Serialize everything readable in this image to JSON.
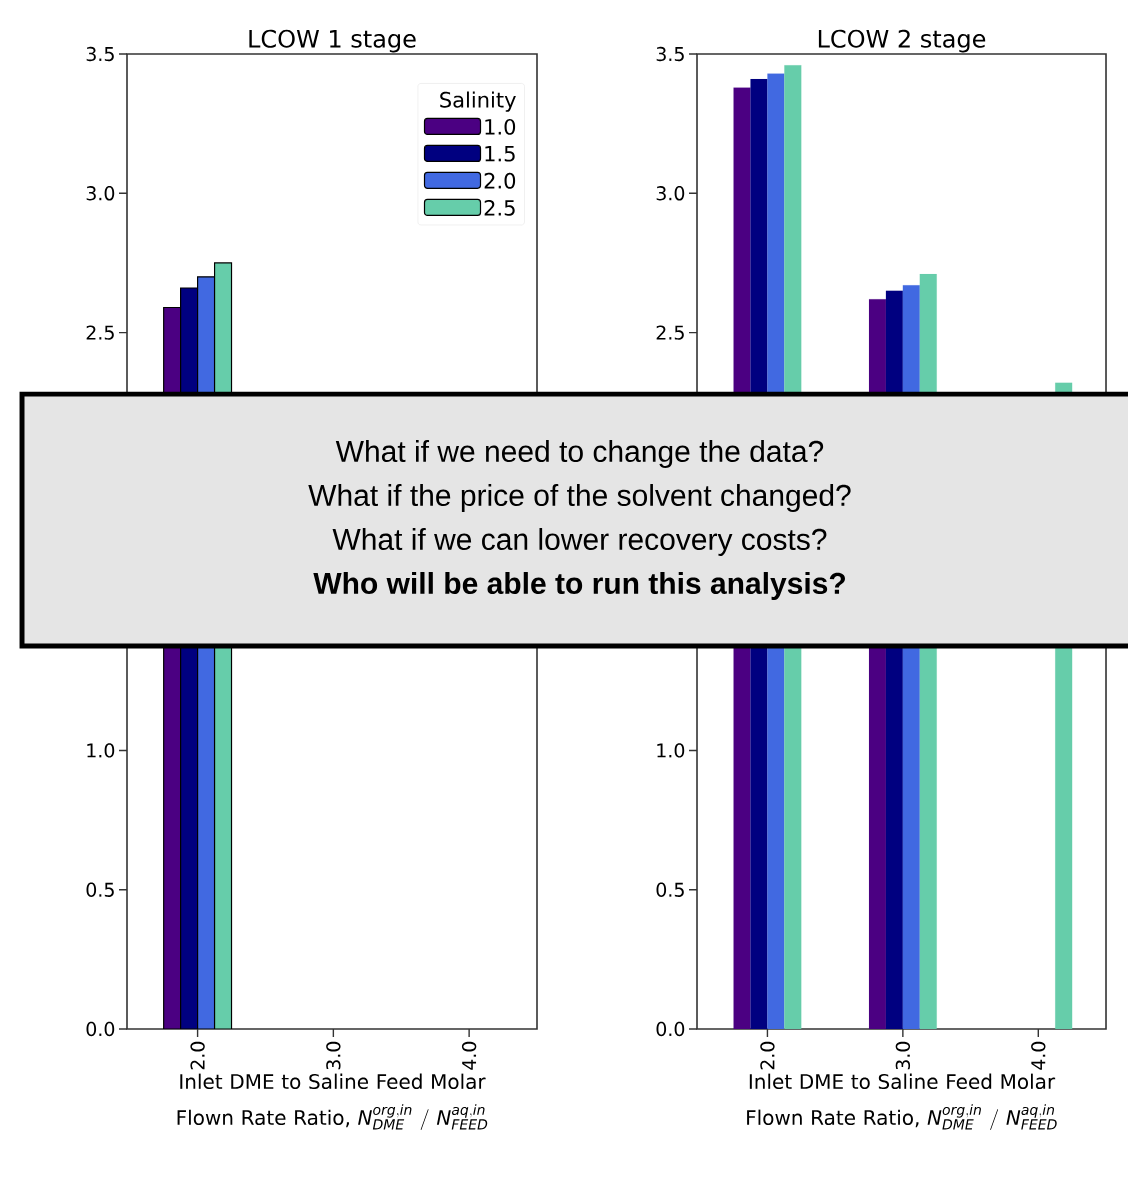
{
  "chart_data": [
    {
      "type": "bar",
      "title": "LCOW 1 stage",
      "xlabel": "Inlet DME to Saline Feed Molar Flown Rate Ratio,",
      "annotations": [
        "N^{org, in}_{DME} \\ / \\ N^{aq, in}_{FEED}"
      ],
      "legend_title": "Salinity",
      "legend": "top right",
      "categories": [
        "2.0",
        "3.0",
        "4.0"
      ],
      "ylim": [
        0,
        3.5
      ],
      "yticks": [
        {
          "value": 0,
          "label": "0.0"
        },
        0.5,
        {
          "value": 1,
          "label": "1.0"
        },
        2.5,
        {
          "value": 3,
          "label": "3.0"
        },
        3.5
      ],
      "series": [
        {
          "name": "1.0",
          "color": "#4b0082",
          "values": [
            2.59,
            null,
            null
          ]
        },
        {
          "name": "1.5",
          "color": "#000080",
          "values": [
            2.66,
            null,
            null
          ]
        },
        {
          "name": "2.0",
          "color": "#4169e1",
          "values": [
            2.7,
            null,
            null
          ]
        },
        {
          "name": "2.5",
          "color": "#66cdaa",
          "values": [
            2.75,
            null,
            null
          ]
        }
      ]
    },
    {
      "type": "bar",
      "title": "LCOW 2 stage",
      "xlabel": "Inlet DME to Saline Feed Molar Flown Rate Ratio,",
      "annotations": [
        "N^{org, in}_{DME} \\ / \\ N^{aq, in}_{FEED}"
      ],
      "categories": [
        "2.0",
        "3.0",
        "4.0"
      ],
      "ylim": [
        0,
        3.5
      ],
      "yticks": [
        {
          "value": 0,
          "label": "0.0"
        },
        0.5,
        {
          "value": 1,
          "label": "1.0"
        },
        2.5,
        {
          "value": 3,
          "label": "3.0"
        },
        3.5
      ],
      "series": [
        {
          "color": "#4b0082",
          "values": [
            3.38,
            2.62,
            null
          ]
        },
        {
          "color": "#000080",
          "values": [
            3.41,
            2.65,
            null
          ]
        },
        {
          "color": "#4169e1",
          "values": [
            3.43,
            2.67,
            null
          ]
        },
        {
          "color": "#66cdaa",
          "values": [
            3.46,
            2.71,
            2.32
          ]
        }
      ]
    },
    {
      "type": "other",
      "annotations": [
        "What if we need to change the data?",
        "What if the price of the solvent changed?",
        "What if we can lower recovery costs?",
        "**Who will be able to run this analysis?**"
      ]
    }
  ]
}
